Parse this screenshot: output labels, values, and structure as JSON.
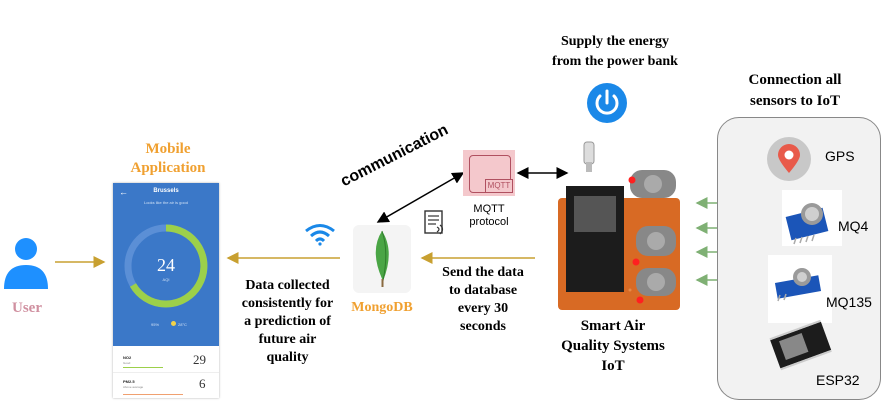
{
  "labels": {
    "user": "User",
    "mobile_app_line1": "Mobile",
    "mobile_app_line2": "Application",
    "data_collected": [
      "Data collected",
      "consistently for",
      "a prediction of",
      "future air",
      "quality"
    ],
    "communication": "communication",
    "mqtt_icon_text": "MQTT",
    "mqtt_protocol_line1": "MQTT",
    "mqtt_protocol_line2": "protocol",
    "mongodb": "MongoDB",
    "send_data": [
      "Send the data",
      "to database",
      "every 30",
      "seconds"
    ],
    "power_supply": [
      "Supply the energy",
      "from the power bank"
    ],
    "smart_air": [
      "Smart Air",
      "Quality Systems",
      "IoT"
    ],
    "connection_title": [
      "Connection all",
      "sensors to IoT"
    ]
  },
  "phone": {
    "city": "Brussels",
    "subtitle": "Looks like the air is good",
    "aqi_value": "24",
    "aqi_unit": "AQI",
    "legend_left": "95%",
    "legend_right": "28°C",
    "rows": [
      {
        "name": "NO2",
        "sub": "Good",
        "value": "29"
      },
      {
        "name": "PM2.5",
        "sub": "Above average",
        "value": "6"
      }
    ]
  },
  "sensors": [
    {
      "name": "GPS"
    },
    {
      "name": "MQ4"
    },
    {
      "name": "MQ135"
    },
    {
      "name": "ESP32"
    }
  ],
  "colors": {
    "mobile_title": "#f0a030",
    "mongodb_label": "#f0a030",
    "user_label": "#d090a0",
    "user_icon": "#1e90ff",
    "arrow_gold": "#c8a030",
    "arrow_green": "#7fb074",
    "phone_blue": "#3b78c8",
    "phone_ring": "#9cd04a",
    "power_blue": "#1a88e8",
    "mqtt_bg": "#f4c8cc"
  }
}
